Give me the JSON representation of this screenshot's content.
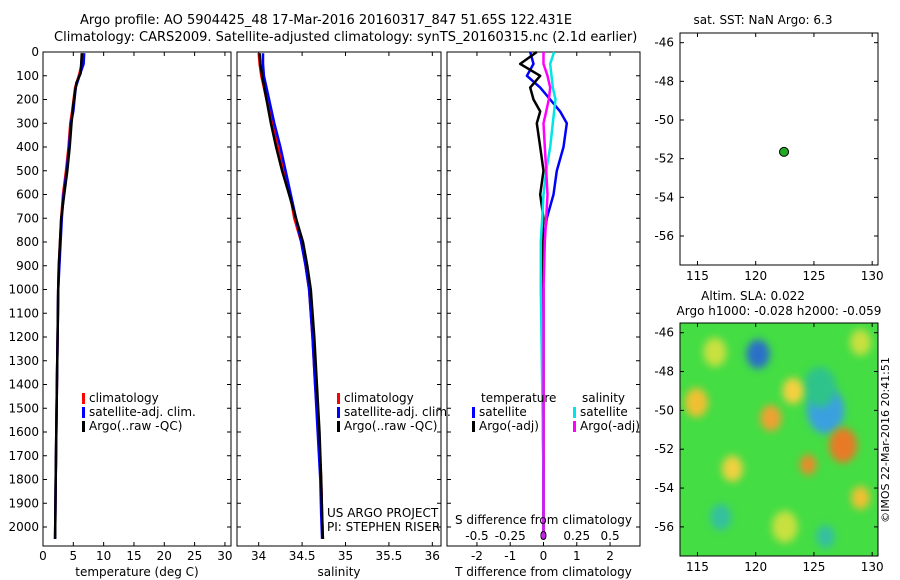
{
  "title": {
    "line1": "Argo profile: AO 5904425_48 17-Mar-2016 20160317_847 51.65S 122.431E",
    "line2": "Climatology: CARS2009. Satellite-adjusted climatology: synTS_20160315.nc (2.1d earlier)"
  },
  "chart_data": [
    {
      "id": "temperature",
      "type": "line",
      "xlabel": "temperature (deg C)",
      "xlim": [
        0,
        31
      ],
      "xticks": [
        "0",
        "5",
        "10",
        "15",
        "20",
        "25",
        "30"
      ],
      "xtick_values": [
        0,
        5,
        10,
        15,
        20,
        25,
        30
      ],
      "ylim": [
        2080,
        0
      ],
      "yticks": [
        "0",
        "100",
        "200",
        "300",
        "400",
        "500",
        "600",
        "700",
        "800",
        "900",
        "1000",
        "1100",
        "1200",
        "1300",
        "1400",
        "1500",
        "1600",
        "1700",
        "1800",
        "1900",
        "2000"
      ],
      "ytick_values": [
        0,
        100,
        200,
        300,
        400,
        500,
        600,
        700,
        800,
        900,
        1000,
        1100,
        1200,
        1300,
        1400,
        1500,
        1600,
        1700,
        1800,
        1900,
        2000
      ],
      "legend": [
        "climatology",
        "satellite-adj. clim.",
        "Argo(..raw -QC)"
      ],
      "legend_colors": [
        "#ff0000",
        "#0000ff",
        "#000000"
      ],
      "series": [
        {
          "name": "climatology",
          "color": "#ff0000",
          "x": [
            6.5,
            6.4,
            5.9,
            5.3,
            4.8,
            4.5,
            4.2,
            3.8,
            3.3,
            3.0,
            2.8,
            2.6,
            2.5,
            2.4,
            2.3,
            2.2,
            2.1,
            2.0
          ],
          "y": [
            5,
            50,
            100,
            150,
            250,
            300,
            400,
            500,
            600,
            700,
            800,
            900,
            1000,
            1200,
            1400,
            1600,
            1800,
            2050
          ]
        },
        {
          "name": "satellite-adj. clim.",
          "color": "#0000ff",
          "x": [
            6.8,
            6.7,
            6.0,
            5.4,
            5.0,
            4.6,
            4.3,
            3.9,
            3.4,
            3.1,
            2.9,
            2.7,
            2.5,
            2.4,
            2.3,
            2.2,
            2.1,
            2.0
          ],
          "y": [
            5,
            50,
            100,
            150,
            250,
            300,
            400,
            500,
            600,
            700,
            800,
            900,
            1000,
            1200,
            1400,
            1600,
            1800,
            2050
          ]
        },
        {
          "name": "Argo(..raw -QC)",
          "color": "#000000",
          "x": [
            6.4,
            6.3,
            6.2,
            5.5,
            5.0,
            4.7,
            4.4,
            4.0,
            3.5,
            3.0,
            2.8,
            2.6,
            2.5,
            2.4,
            2.3,
            2.2,
            2.1,
            2.0
          ],
          "y": [
            5,
            50,
            90,
            130,
            220,
            300,
            400,
            500,
            600,
            700,
            800,
            900,
            1000,
            1200,
            1400,
            1600,
            1800,
            2050
          ]
        }
      ]
    },
    {
      "id": "salinity",
      "type": "line",
      "xlabel": "salinity",
      "xlim": [
        33.75,
        36.1
      ],
      "xticks": [
        "34",
        "34.5",
        "35",
        "35.5",
        "36"
      ],
      "xtick_values": [
        34,
        34.5,
        35,
        35.5,
        36
      ],
      "ylim": [
        2080,
        0
      ],
      "legend": [
        "climatology",
        "satellite-adj. clim.",
        "Argo(..raw -QC)"
      ],
      "legend_colors": [
        "#ff0000",
        "#0000ff",
        "#000000"
      ],
      "annotation": [
        "US ARGO PROJECT",
        "PI: STEPHEN RISER"
      ],
      "series": [
        {
          "name": "climatology",
          "color": "#ff0000",
          "x": [
            34.0,
            34.01,
            34.03,
            34.09,
            34.16,
            34.22,
            34.29,
            34.36,
            34.41,
            34.49,
            34.54,
            34.58,
            34.62,
            34.65,
            34.69,
            34.72,
            34.73,
            34.74
          ],
          "y": [
            5,
            50,
            100,
            200,
            300,
            400,
            500,
            600,
            700,
            800,
            900,
            1000,
            1200,
            1400,
            1600,
            1800,
            1950,
            2050
          ]
        },
        {
          "name": "satellite-adj. clim.",
          "color": "#0000ff",
          "x": [
            34.05,
            34.05,
            34.06,
            34.12,
            34.18,
            34.25,
            34.31,
            34.37,
            34.43,
            34.49,
            34.54,
            34.58,
            34.62,
            34.65,
            34.68,
            34.71,
            34.72,
            34.73
          ],
          "y": [
            5,
            50,
            100,
            200,
            300,
            400,
            500,
            600,
            700,
            800,
            900,
            1000,
            1200,
            1400,
            1600,
            1800,
            1950,
            2050
          ]
        },
        {
          "name": "Argo(..raw -QC)",
          "color": "#000000",
          "x": [
            34.01,
            34.02,
            34.04,
            34.09,
            34.14,
            34.2,
            34.27,
            34.35,
            34.43,
            34.51,
            34.56,
            34.6,
            34.64,
            34.67,
            34.7,
            34.72,
            34.73,
            34.74
          ],
          "y": [
            5,
            50,
            100,
            200,
            300,
            400,
            500,
            600,
            700,
            800,
            900,
            1000,
            1200,
            1400,
            1600,
            1800,
            1950,
            2050
          ]
        }
      ]
    },
    {
      "id": "difference",
      "type": "line",
      "xlabel": "T difference from climatology",
      "xlabel_top": "S difference from climatology",
      "xlim": [
        -2.9,
        2.9
      ],
      "xticks": [
        "-2",
        "-1",
        "0",
        "1",
        "2"
      ],
      "xtick_values": [
        -2,
        -1,
        0,
        1,
        2
      ],
      "s_ticks": [
        "-0.5",
        "-0.25",
        "0",
        "0.25",
        "0.5"
      ],
      "s_tick_values": [
        -0.5,
        -0.25,
        0,
        0.25,
        0.5
      ],
      "s_scale": 4,
      "ylim": [
        2080,
        0
      ],
      "legend_title_t": "temperature",
      "legend_title_s": "salinity",
      "legend_t": [
        "satellite",
        "Argo(-adj)"
      ],
      "legend_t_colors": [
        "#0000ff",
        "#000000"
      ],
      "legend_s": [
        "satellite",
        "Argo(-adj)"
      ],
      "legend_s_colors": [
        "#00e5e5",
        "#ff00ff"
      ],
      "series": [
        {
          "name": "T satellite",
          "color": "#0000ff",
          "x": [
            -0.4,
            -0.3,
            -0.5,
            -0.1,
            0.2,
            0.5,
            0.7,
            0.6,
            0.4,
            0.3,
            0.1,
            0.0,
            -0.05,
            -0.03,
            0.0,
            0.0
          ],
          "y": [
            0,
            50,
            100,
            150,
            200,
            250,
            300,
            400,
            500,
            600,
            700,
            800,
            1000,
            1400,
            1800,
            2050
          ]
        },
        {
          "name": "T Argo(-adj)",
          "color": "#000000",
          "x": [
            -0.2,
            -0.7,
            -0.1,
            -0.4,
            -0.3,
            -0.1,
            -0.2,
            -0.1,
            0.0,
            -0.1,
            0.0,
            -0.05,
            0.0,
            0.0,
            0.0,
            0.0
          ],
          "y": [
            0,
            50,
            100,
            150,
            200,
            250,
            300,
            400,
            500,
            600,
            700,
            800,
            1000,
            1400,
            1800,
            2050
          ]
        },
        {
          "name": "S satellite",
          "color": "#00e5e5",
          "x": [
            0.08,
            0.05,
            0.06,
            0.07,
            0.09,
            0.08,
            0.07,
            0.05,
            0.02,
            0.0,
            -0.01,
            -0.02,
            -0.02,
            -0.01,
            0.0,
            0.0
          ],
          "y": [
            0,
            50,
            100,
            150,
            200,
            250,
            300,
            400,
            500,
            600,
            700,
            800,
            1000,
            1400,
            1800,
            2050
          ]
        },
        {
          "name": "S Argo(-adj)",
          "color": "#ff00ff",
          "x": [
            0.0,
            0.0,
            0.03,
            0.05,
            0.04,
            0.02,
            0.0,
            0.01,
            0.02,
            0.03,
            0.02,
            0.01,
            0.0,
            0.0,
            0.0,
            0.0
          ],
          "y": [
            0,
            50,
            100,
            150,
            200,
            250,
            300,
            400,
            500,
            600,
            700,
            800,
            1000,
            1400,
            1800,
            2050
          ]
        }
      ]
    },
    {
      "id": "location",
      "type": "scatter",
      "title": "sat. SST: NaN Argo: 6.3",
      "xlim": [
        113.5,
        130.5
      ],
      "ylim": [
        -57.5,
        -45.5
      ],
      "xticks": [
        "115",
        "120",
        "125",
        "130"
      ],
      "xtick_values": [
        115,
        120,
        125,
        130
      ],
      "yticks": [
        "-46",
        "-48",
        "-50",
        "-52",
        "-54",
        "-56"
      ],
      "ytick_values": [
        -46,
        -48,
        -50,
        -52,
        -54,
        -56
      ],
      "points": [
        {
          "x": 122.431,
          "y": -51.65,
          "color": "#22aa22"
        }
      ]
    },
    {
      "id": "sla",
      "type": "heatmap",
      "title_line1": "Altim. SLA: 0.022",
      "title_line2": "Argo h1000: -0.028 h2000: -0.059",
      "xlim": [
        113.5,
        130.5
      ],
      "ylim": [
        -57.5,
        -45.5
      ],
      "xticks": [
        "115",
        "120",
        "125",
        "130"
      ],
      "xtick_values": [
        115,
        120,
        125,
        130
      ],
      "yticks": [
        "-46",
        "-48",
        "-50",
        "-52",
        "-54",
        "-56"
      ],
      "ytick_values": [
        -46,
        -48,
        -50,
        -52,
        -54,
        -56
      ],
      "background_color": "#44dd44",
      "blobs": [
        {
          "lon": 120.2,
          "lat": -47.1,
          "color": "#2a6fc9",
          "r": 1.0
        },
        {
          "lon": 126.0,
          "lat": -50.0,
          "color": "#3aa0e0",
          "r": 1.6
        },
        {
          "lon": 125.5,
          "lat": -48.8,
          "color": "#2fc38a",
          "r": 1.4
        },
        {
          "lon": 127.5,
          "lat": -51.8,
          "color": "#e87a28",
          "r": 1.2
        },
        {
          "lon": 114.9,
          "lat": -49.6,
          "color": "#f0c030",
          "r": 1.0
        },
        {
          "lon": 121.3,
          "lat": -50.4,
          "color": "#f0a030",
          "r": 0.9
        },
        {
          "lon": 123.2,
          "lat": -49.0,
          "color": "#f5d040",
          "r": 0.9
        },
        {
          "lon": 124.5,
          "lat": -52.8,
          "color": "#ea8a2a",
          "r": 0.7
        },
        {
          "lon": 116.5,
          "lat": -47.0,
          "color": "#c8e040",
          "r": 1.0
        },
        {
          "lon": 118.0,
          "lat": -53.0,
          "color": "#f0d040",
          "r": 0.9
        },
        {
          "lon": 129.0,
          "lat": -46.5,
          "color": "#c8e040",
          "r": 0.9
        },
        {
          "lon": 129.0,
          "lat": -54.5,
          "color": "#f0c030",
          "r": 0.8
        },
        {
          "lon": 122.5,
          "lat": -56.0,
          "color": "#c8e040",
          "r": 1.1
        },
        {
          "lon": 117.0,
          "lat": -55.5,
          "color": "#36c0a0",
          "r": 0.9
        },
        {
          "lon": 126.0,
          "lat": -56.5,
          "color": "#36c0a0",
          "r": 0.8
        }
      ]
    }
  ],
  "watermark": "©IMOS 22-Mar-2016 20:41:51"
}
